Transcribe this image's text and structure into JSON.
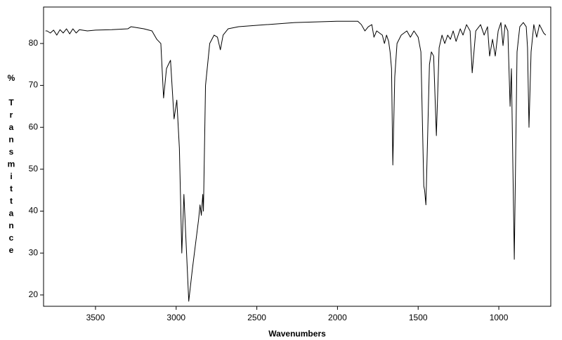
{
  "chart_data": {
    "type": "line",
    "x_label": "Wavenumbers",
    "y_label": "% Transmittance",
    "xlim": [
      3822,
      678
    ],
    "ylim": [
      17.3,
      88.7
    ],
    "xticks": [
      3500,
      3000,
      2500,
      2000,
      1500,
      1000
    ],
    "yticks": [
      20,
      30,
      40,
      50,
      60,
      70,
      80
    ],
    "color": "#000000",
    "x": [
      3810,
      3800,
      3780,
      3760,
      3740,
      3720,
      3700,
      3680,
      3660,
      3640,
      3620,
      3600,
      3550,
      3500,
      3400,
      3300,
      3280,
      3200,
      3150,
      3120,
      3095,
      3078,
      3060,
      3048,
      3035,
      3013,
      2996,
      2980,
      2965,
      2952,
      2922,
      2900,
      2887,
      2861,
      2852,
      2844,
      2835,
      2831,
      2818,
      2792,
      2765,
      2744,
      2726,
      2709,
      2678,
      2613,
      2439,
      2265,
      2004,
      1874,
      1852,
      1830,
      1809,
      1787,
      1774,
      1757,
      1722,
      1709,
      1696,
      1683,
      1674,
      1665,
      1657,
      1645,
      1631,
      1605,
      1570,
      1548,
      1526,
      1500,
      1483,
      1465,
      1460,
      1452,
      1430,
      1418,
      1404,
      1387,
      1370,
      1352,
      1335,
      1317,
      1300,
      1283,
      1265,
      1239,
      1222,
      1200,
      1178,
      1165,
      1143,
      1113,
      1091,
      1070,
      1057,
      1039,
      1022,
      1004,
      987,
      974,
      961,
      944,
      930,
      922,
      904,
      887,
      870,
      848,
      830,
      822,
      813,
      800,
      783,
      765,
      748,
      722,
      709
    ],
    "values": [
      83,
      83,
      82.5,
      83.2,
      82,
      83.3,
      82.5,
      83.5,
      82.3,
      83.5,
      82.5,
      83.3,
      83,
      83.2,
      83.3,
      83.5,
      84,
      83.5,
      83,
      81,
      80,
      67,
      74,
      75,
      76,
      62,
      66.5,
      55,
      30,
      44,
      18.5,
      26,
      30,
      38,
      41.5,
      39,
      44,
      40,
      70,
      80,
      82,
      81.5,
      78.5,
      82,
      83.5,
      84,
      84.5,
      85,
      85.3,
      85.3,
      84.5,
      83,
      84,
      84.5,
      81.5,
      83,
      82,
      80,
      82,
      80.5,
      78,
      74,
      51,
      72,
      80,
      82,
      83,
      81.5,
      83,
      81.5,
      78,
      46,
      45,
      41.5,
      75,
      78,
      77,
      58,
      79,
      82,
      80,
      82,
      81,
      83,
      80.5,
      83.5,
      82,
      84.5,
      83,
      73,
      83,
      84.5,
      82,
      84,
      77,
      81,
      77,
      83,
      85,
      79.5,
      84.5,
      83,
      65,
      74,
      28.5,
      78,
      84,
      85,
      84,
      79,
      60,
      78,
      84.5,
      81.5,
      84.5,
      82.5,
      82
    ]
  }
}
